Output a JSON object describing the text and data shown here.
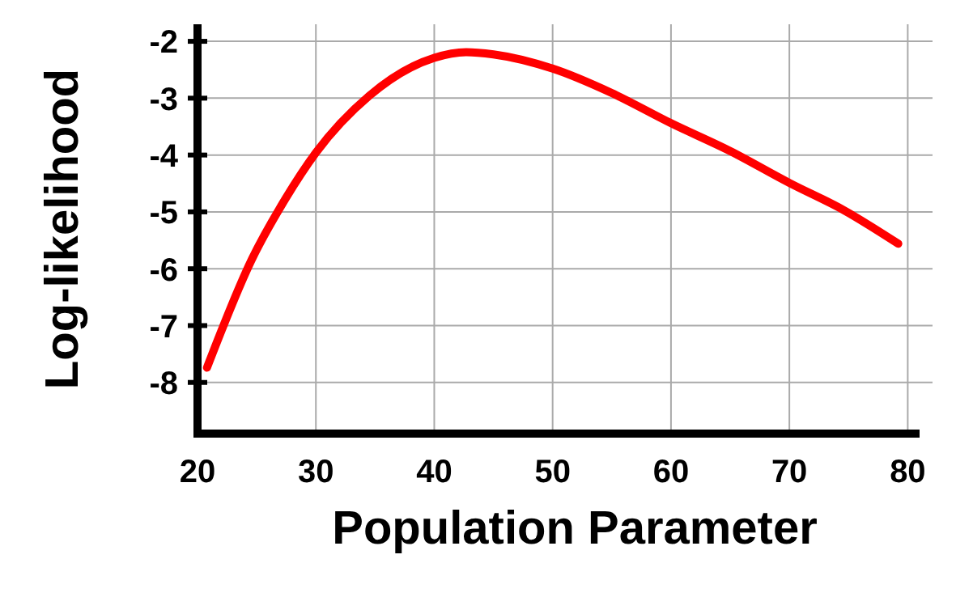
{
  "chart_data": {
    "type": "line",
    "xlabel": "Population Parameter",
    "ylabel": "Log-likelihood",
    "xlim": [
      20,
      81
    ],
    "ylim": [
      -8.9,
      -1.7
    ],
    "xticks": [
      20,
      30,
      40,
      50,
      60,
      70,
      80
    ],
    "yticks": [
      -8,
      -7,
      -6,
      -5,
      -4,
      -3,
      -2
    ],
    "grid": true,
    "marker": "none",
    "line_style": "solid",
    "series": [
      {
        "color": "#ff0000",
        "x": [
          20.8,
          24.6,
          27.4,
          30,
          34.5,
          40,
          42.7,
          45,
          50,
          55,
          60,
          65,
          70,
          74.6,
          79.2
        ],
        "values": [
          -7.74,
          -5.83,
          -4.78,
          -3.96,
          -2.96,
          -2.29,
          -2.19,
          -2.23,
          -2.48,
          -2.91,
          -3.44,
          -3.93,
          -4.49,
          -4.97,
          -5.56
        ]
      }
    ]
  }
}
